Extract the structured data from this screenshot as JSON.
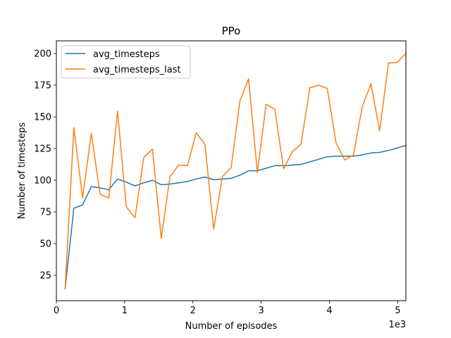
{
  "chart_data": {
    "type": "line",
    "title": "PPo",
    "xlabel": "Number of episodes",
    "ylabel": "Number of timesteps",
    "x_offset_text": "1e3",
    "xlim": [
      0,
      5.12
    ],
    "ylim": [
      5,
      210
    ],
    "xticks": [
      0,
      1,
      2,
      3,
      4,
      5
    ],
    "xtick_labels": [
      "0",
      "1",
      "2",
      "3",
      "4",
      "5"
    ],
    "yticks": [
      25,
      50,
      75,
      100,
      125,
      150,
      175,
      200
    ],
    "ytick_labels": [
      "25",
      "50",
      "75",
      "100",
      "125",
      "150",
      "175",
      "200"
    ],
    "grid": false,
    "legend_position": "upper-left",
    "x": [
      0.128,
      0.256,
      0.384,
      0.512,
      0.64,
      0.768,
      0.896,
      1.024,
      1.152,
      1.28,
      1.408,
      1.536,
      1.664,
      1.792,
      1.92,
      2.048,
      2.176,
      2.304,
      2.432,
      2.56,
      2.688,
      2.816,
      2.944,
      3.072,
      3.2,
      3.328,
      3.456,
      3.584,
      3.712,
      3.84,
      3.968,
      4.096,
      4.224,
      4.352,
      4.48,
      4.608,
      4.736,
      4.864,
      4.992,
      5.12
    ],
    "series": [
      {
        "name": "avg_timesteps",
        "color": "#1f77b4",
        "values": [
          14.5,
          78,
          80.5,
          95,
          94,
          92.5,
          101,
          98.5,
          95.5,
          98,
          100,
          96.5,
          97,
          98,
          99,
          101,
          102.5,
          100.5,
          101,
          101.5,
          104,
          107.5,
          107.5,
          109.5,
          111.5,
          111.5,
          112,
          112.5,
          114.5,
          116.5,
          118.5,
          119,
          119,
          119,
          120,
          121.5,
          122,
          123.5,
          125.5,
          127.5
        ]
      },
      {
        "name": "avg_timesteps_last",
        "color": "#ff7f0e",
        "values": [
          14.5,
          141.5,
          86,
          137,
          89,
          86,
          154.5,
          79,
          70.5,
          118,
          124.5,
          54,
          103,
          112,
          111.5,
          137.5,
          128.5,
          61.5,
          103,
          110,
          162.5,
          180,
          106,
          160,
          156,
          109,
          122.5,
          128.5,
          173,
          175,
          172.5,
          129.5,
          116,
          120,
          158,
          176,
          139,
          192.5,
          193,
          200
        ]
      }
    ]
  }
}
